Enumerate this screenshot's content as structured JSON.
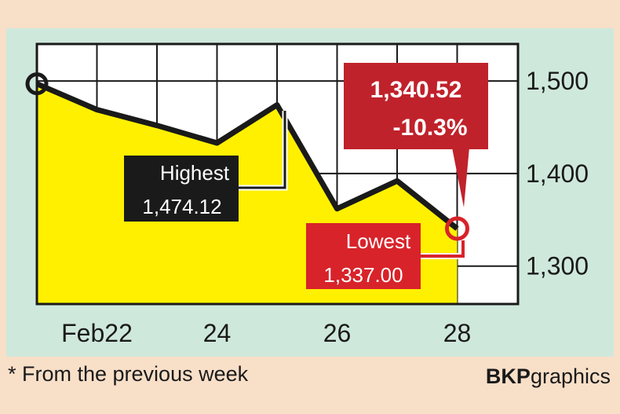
{
  "chart_data": {
    "type": "area",
    "x": [
      "Feb21",
      "Feb22",
      "Feb23",
      "Feb24",
      "Feb25",
      "Feb26",
      "Feb27",
      "Feb28"
    ],
    "values": [
      1497,
      1469,
      1452,
      1433,
      1474.12,
      1362,
      1392,
      1340.52
    ],
    "x_tick_labels": [
      "Feb22",
      "24",
      "26",
      "28"
    ],
    "y_tick_labels": [
      "1,500",
      "1,400",
      "1,300"
    ],
    "y_ticks": [
      1500,
      1400,
      1300
    ],
    "ylim": [
      1259,
      1540
    ],
    "grid": true,
    "annotations": {
      "last": {
        "value": "1,340.52",
        "change": "-10.3%"
      },
      "highest": {
        "label": "Highest",
        "value": "1,474.12"
      },
      "lowest": {
        "label": "Lowest",
        "value": "1,337.00"
      }
    },
    "colors": {
      "fill": "#fff000",
      "line": "#1a1a1a",
      "red": "#d8232a",
      "box_black": "#1a1a1a",
      "panel": "#cfe8dc"
    }
  },
  "footnote": "* From the previous week",
  "brand": {
    "bold": "BKP",
    "normal": "graphics"
  }
}
